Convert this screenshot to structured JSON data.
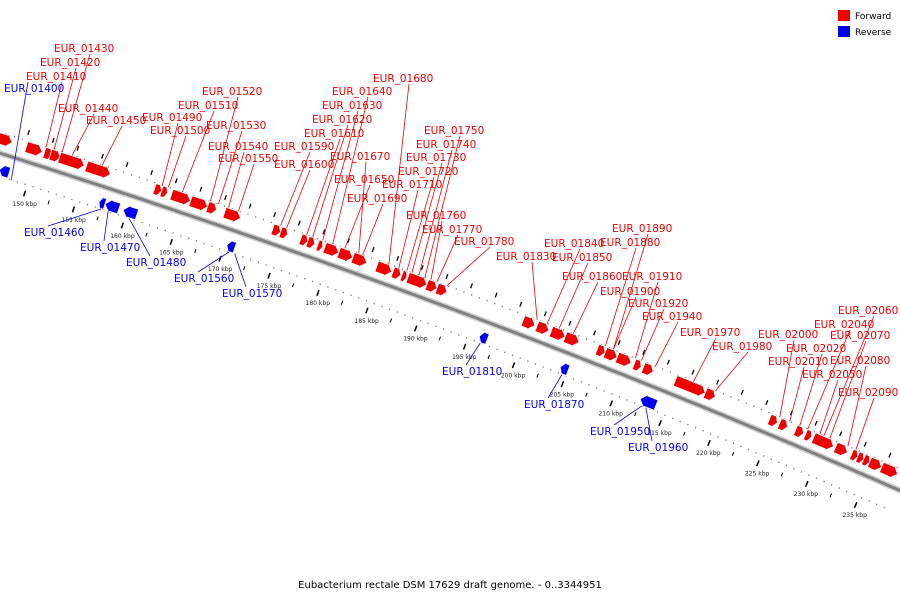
{
  "caption": "Eubacterium rectale DSM 17629 draft genome. - 0..3344951",
  "legend": [
    {
      "label": "Forward",
      "color": "#ee0000"
    },
    {
      "label": "Reverse",
      "color": "#0000ee"
    }
  ],
  "colors": {
    "forward": "#ee0000",
    "reverse": "#0000ee",
    "backbone": "#808080"
  },
  "ticks": [
    "150 kbp",
    "155 kbp",
    "160 kbp",
    "165 kbp",
    "170 kbp",
    "175 kbp",
    "180 kbp",
    "185 kbp",
    "190 kbp",
    "195 kbp",
    "200 kbp",
    "205 kbp",
    "210 kbp",
    "215 kbp",
    "220 kbp",
    "225 kbp",
    "230 kbp",
    "235 kbp"
  ],
  "forward_labels": [
    "EUR_01410",
    "EUR_01420",
    "EUR_01430",
    "EUR_01440",
    "EUR_01450",
    "EUR_01490",
    "EUR_01500",
    "EUR_01510",
    "EUR_01520",
    "EUR_01530",
    "EUR_01540",
    "EUR_01550",
    "EUR_01590",
    "EUR_01600",
    "EUR_01610",
    "EUR_01620",
    "EUR_01630",
    "EUR_01640",
    "EUR_01650",
    "EUR_01670",
    "EUR_01680",
    "EUR_01690",
    "EUR_01710",
    "EUR_01720",
    "EUR_01730",
    "EUR_01740",
    "EUR_01750",
    "EUR_01760",
    "EUR_01770",
    "EUR_01780",
    "EUR_01830",
    "EUR_01840",
    "EUR_01850",
    "EUR_01860",
    "EUR_01880",
    "EUR_01890",
    "EUR_01900",
    "EUR_01910",
    "EUR_01920",
    "EUR_01940",
    "EUR_01970",
    "EUR_01980",
    "EUR_02000",
    "EUR_02010",
    "EUR_02020",
    "EUR_02040",
    "EUR_02050",
    "EUR_02060",
    "EUR_02070",
    "EUR_02080",
    "EUR_02090"
  ],
  "reverse_labels": [
    "EUR_01400",
    "EUR_01460",
    "EUR_01470",
    "EUR_01480",
    "EUR_01560",
    "EUR_01570",
    "EUR_01810",
    "EUR_01870",
    "EUR_01950",
    "EUR_01960"
  ]
}
